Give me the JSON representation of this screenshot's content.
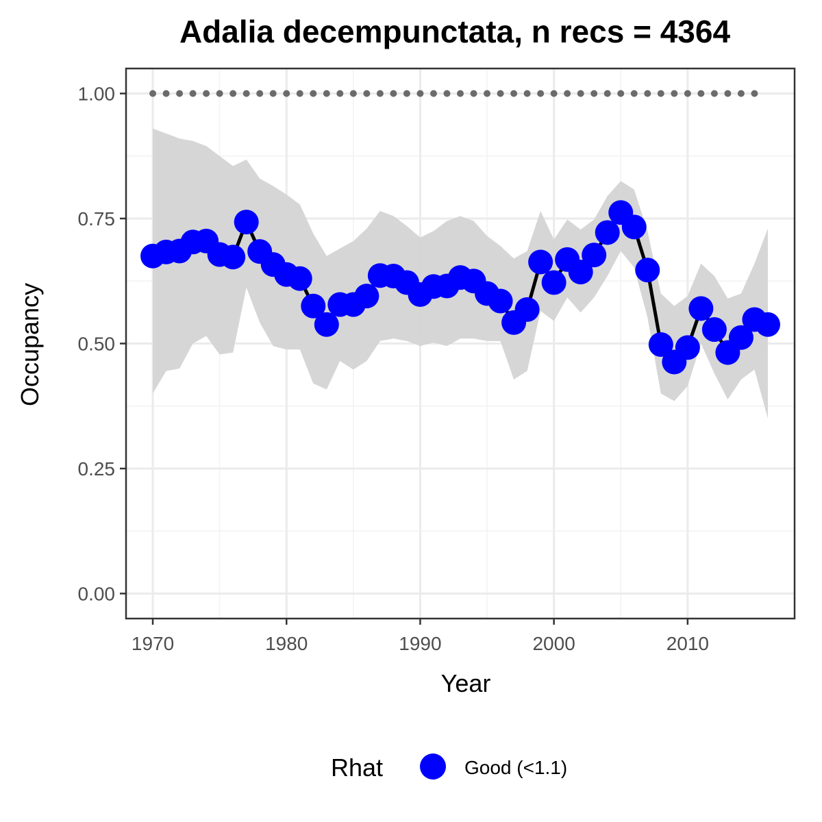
{
  "chart_data": {
    "type": "line",
    "title": "Adalia decempunctata, n recs = 4364",
    "xlabel": "Year",
    "ylabel": "Occupancy",
    "xlim": [
      1968,
      2018
    ],
    "ylim": [
      -0.05,
      1.05
    ],
    "x_ticks": [
      1970,
      1980,
      1990,
      2000,
      2010
    ],
    "x_tick_labels": [
      "1970",
      "1980",
      "1990",
      "2000",
      "2010"
    ],
    "y_ticks": [
      0,
      0.25,
      0.5,
      0.75,
      1.0
    ],
    "y_tick_labels": [
      "0.00",
      "0.25",
      "0.50",
      "0.75",
      "1.00"
    ],
    "grid": true,
    "legend": {
      "title": "Rhat",
      "position": "bottom",
      "entries": [
        {
          "label": "Good (<1.1)",
          "color": "#0000ff"
        }
      ]
    },
    "colors": {
      "points": "#0000ff",
      "line": "#000000",
      "ribbon": "#d4d4d4",
      "reference": "#6b6b6b"
    },
    "x": [
      1970,
      1971,
      1972,
      1973,
      1974,
      1975,
      1976,
      1977,
      1978,
      1979,
      1980,
      1981,
      1982,
      1983,
      1984,
      1985,
      1986,
      1987,
      1988,
      1989,
      1990,
      1991,
      1992,
      1993,
      1994,
      1995,
      1996,
      1997,
      1998,
      1999,
      2000,
      2001,
      2002,
      2003,
      2004,
      2005,
      2006,
      2007,
      2008,
      2009,
      2010,
      2011,
      2012,
      2013,
      2014,
      2015,
      2016
    ],
    "occupancy": [
      0.675,
      0.683,
      0.685,
      0.703,
      0.705,
      0.678,
      0.673,
      0.743,
      0.684,
      0.658,
      0.638,
      0.63,
      0.575,
      0.538,
      0.578,
      0.578,
      0.595,
      0.636,
      0.635,
      0.622,
      0.598,
      0.614,
      0.615,
      0.632,
      0.625,
      0.6,
      0.585,
      0.542,
      0.568,
      0.663,
      0.622,
      0.668,
      0.643,
      0.677,
      0.722,
      0.762,
      0.733,
      0.647,
      0.498,
      0.463,
      0.492,
      0.57,
      0.528,
      0.482,
      0.512,
      0.548,
      0.538
    ],
    "upper": [
      0.93,
      0.92,
      0.91,
      0.905,
      0.895,
      0.875,
      0.855,
      0.868,
      0.83,
      0.815,
      0.798,
      0.778,
      0.72,
      0.675,
      0.69,
      0.705,
      0.73,
      0.765,
      0.755,
      0.735,
      0.712,
      0.725,
      0.745,
      0.755,
      0.745,
      0.715,
      0.695,
      0.67,
      0.685,
      0.765,
      0.708,
      0.748,
      0.728,
      0.748,
      0.795,
      0.825,
      0.808,
      0.725,
      0.6,
      0.575,
      0.595,
      0.66,
      0.635,
      0.59,
      0.6,
      0.66,
      0.73
    ],
    "lower": [
      0.4,
      0.445,
      0.45,
      0.5,
      0.515,
      0.478,
      0.482,
      0.612,
      0.542,
      0.495,
      0.488,
      0.488,
      0.42,
      0.408,
      0.465,
      0.448,
      0.465,
      0.505,
      0.51,
      0.505,
      0.495,
      0.502,
      0.495,
      0.51,
      0.51,
      0.505,
      0.505,
      0.428,
      0.445,
      0.565,
      0.545,
      0.592,
      0.562,
      0.592,
      0.635,
      0.685,
      0.652,
      0.552,
      0.4,
      0.385,
      0.415,
      0.5,
      0.44,
      0.388,
      0.428,
      0.448,
      0.35
    ],
    "reference_line": {
      "y": 1.0,
      "x": [
        1970,
        1971,
        1972,
        1973,
        1974,
        1975,
        1976,
        1977,
        1978,
        1979,
        1980,
        1981,
        1982,
        1983,
        1984,
        1985,
        1986,
        1987,
        1988,
        1989,
        1990,
        1991,
        1992,
        1993,
        1994,
        1995,
        1996,
        1997,
        1998,
        1999,
        2000,
        2001,
        2002,
        2003,
        2004,
        2005,
        2006,
        2007,
        2008,
        2009,
        2010,
        2011,
        2012,
        2013,
        2014,
        2015
      ]
    }
  }
}
